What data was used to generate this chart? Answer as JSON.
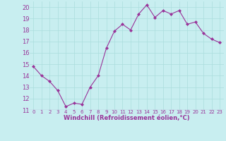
{
  "x": [
    0,
    1,
    2,
    3,
    4,
    5,
    6,
    7,
    8,
    9,
    10,
    11,
    12,
    13,
    14,
    15,
    16,
    17,
    18,
    19,
    20,
    21,
    22,
    23
  ],
  "y": [
    14.8,
    14.0,
    13.5,
    12.7,
    11.3,
    11.6,
    11.5,
    13.0,
    14.0,
    16.4,
    17.9,
    18.5,
    18.0,
    19.4,
    20.2,
    19.1,
    19.7,
    19.4,
    19.7,
    18.5,
    18.7,
    17.7,
    17.2,
    16.9
  ],
  "line_color": "#993399",
  "marker": "D",
  "marker_size": 2,
  "bg_color": "#c8eef0",
  "grid_color": "#aadddd",
  "xlabel": "Windchill (Refroidissement éolien,°C)",
  "xlabel_color": "#993399",
  "tick_color": "#993399",
  "ylim": [
    11,
    20.5
  ],
  "yticks": [
    11,
    12,
    13,
    14,
    15,
    16,
    17,
    18,
    19,
    20
  ],
  "xlim": [
    -0.5,
    23.5
  ],
  "xticks": [
    0,
    1,
    2,
    3,
    4,
    5,
    6,
    7,
    8,
    9,
    10,
    11,
    12,
    13,
    14,
    15,
    16,
    17,
    18,
    19,
    20,
    21,
    22,
    23
  ]
}
